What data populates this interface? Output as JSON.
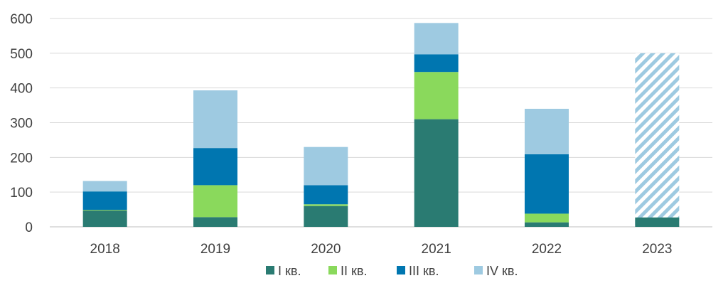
{
  "chart_data": {
    "type": "bar",
    "stacked": true,
    "categories": [
      "2018",
      "2019",
      "2020",
      "2021",
      "2022",
      "2023"
    ],
    "series": [
      {
        "name": "I кв.",
        "color": "#2a7b72",
        "values": [
          47,
          28,
          60,
          310,
          13,
          27
        ]
      },
      {
        "name": "II кв.",
        "color": "#8ad95c",
        "values": [
          2,
          92,
          5,
          136,
          25,
          null
        ]
      },
      {
        "name": "III кв.",
        "color": "#0076b0",
        "values": [
          53,
          107,
          55,
          51,
          171,
          null
        ]
      },
      {
        "name": "IV кв.",
        "color": "#9ecae1",
        "values": [
          30,
          166,
          110,
          90,
          131,
          null
        ]
      }
    ],
    "forecast": {
      "category": "2023",
      "total": 500,
      "pattern": "hatched",
      "color": "#9ecae1"
    },
    "ylim": [
      0,
      600
    ],
    "yticks": [
      0,
      100,
      200,
      300,
      400,
      500,
      600
    ],
    "grid": true,
    "legend_position": "bottom"
  }
}
